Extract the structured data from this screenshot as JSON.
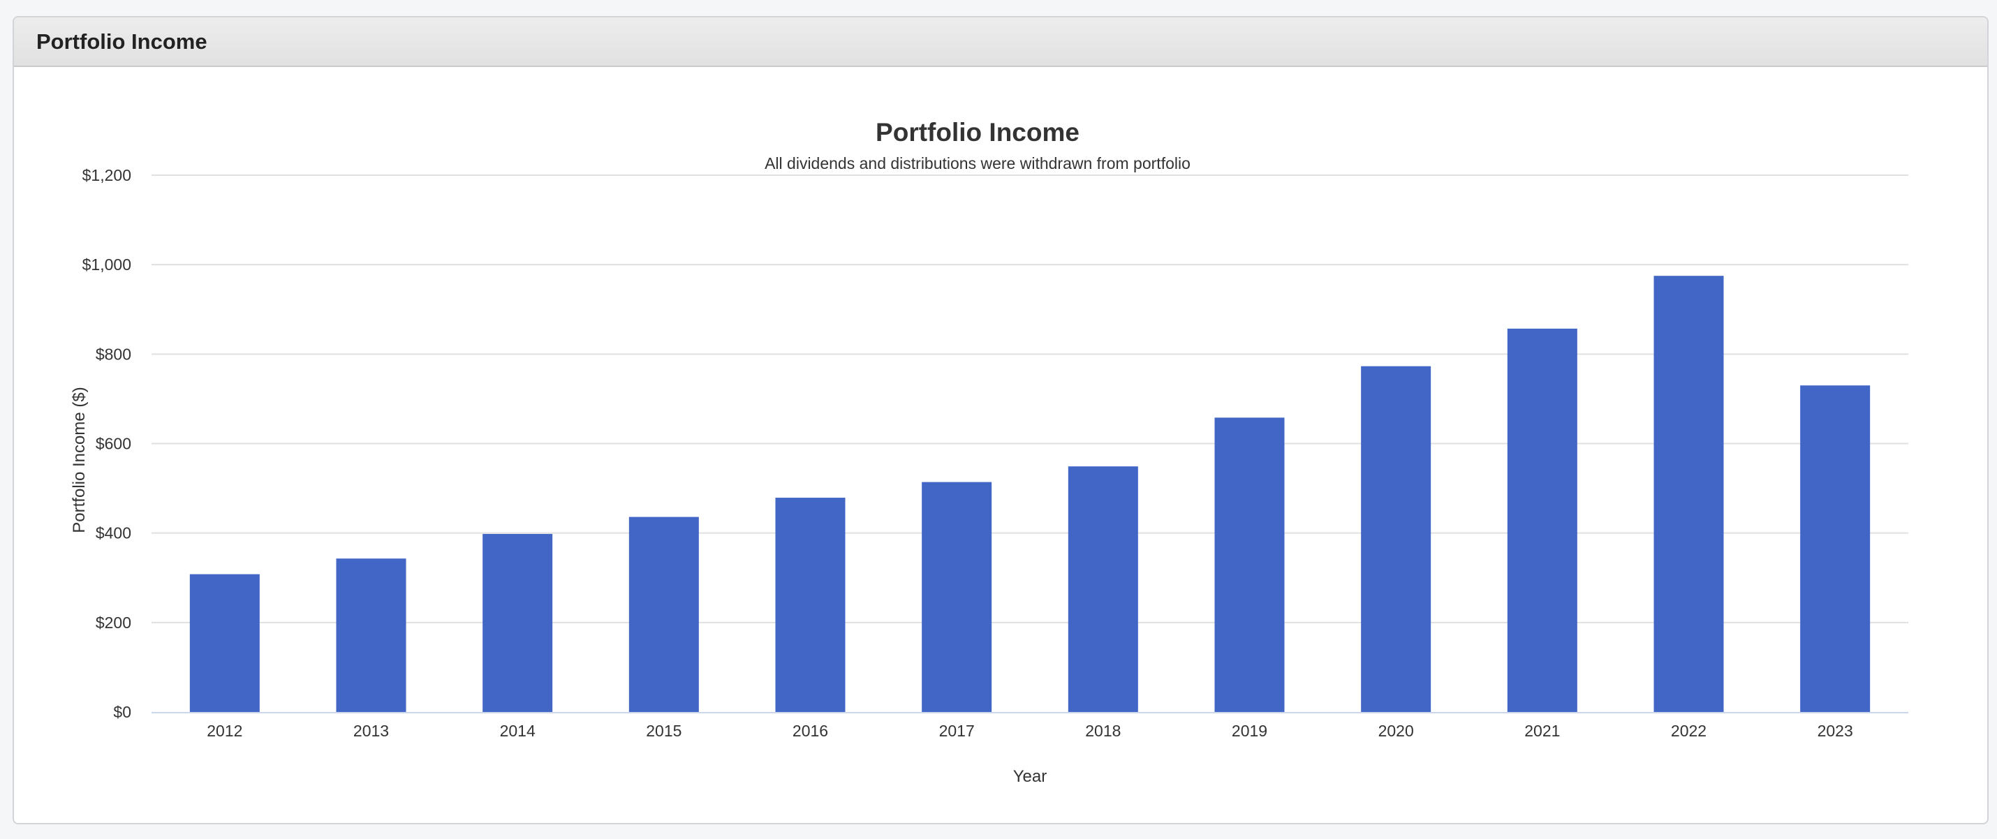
{
  "panel": {
    "title": "Portfolio Income"
  },
  "colors": {
    "bar": "#4166c6",
    "grid": "#e0e0e0",
    "axis_line": "#ccd6eb",
    "text": "#333333"
  },
  "chart_data": {
    "type": "bar",
    "title": "Portfolio Income",
    "subtitle": "All dividends and distributions were withdrawn from portfolio",
    "xlabel": "Year",
    "ylabel": "Portfolio Income ($)",
    "categories": [
      "2012",
      "2013",
      "2014",
      "2015",
      "2016",
      "2017",
      "2018",
      "2019",
      "2020",
      "2021",
      "2022",
      "2023"
    ],
    "values": [
      308,
      343,
      398,
      436,
      479,
      514,
      549,
      658,
      773,
      857,
      975,
      730
    ],
    "ylim": [
      0,
      1200
    ],
    "yticks": [
      0,
      200,
      400,
      600,
      800,
      1000,
      1200
    ],
    "ytick_labels": [
      "$0",
      "$200",
      "$400",
      "$600",
      "$800",
      "$1,000",
      "$1,200"
    ],
    "grid": true,
    "legend": "none"
  }
}
